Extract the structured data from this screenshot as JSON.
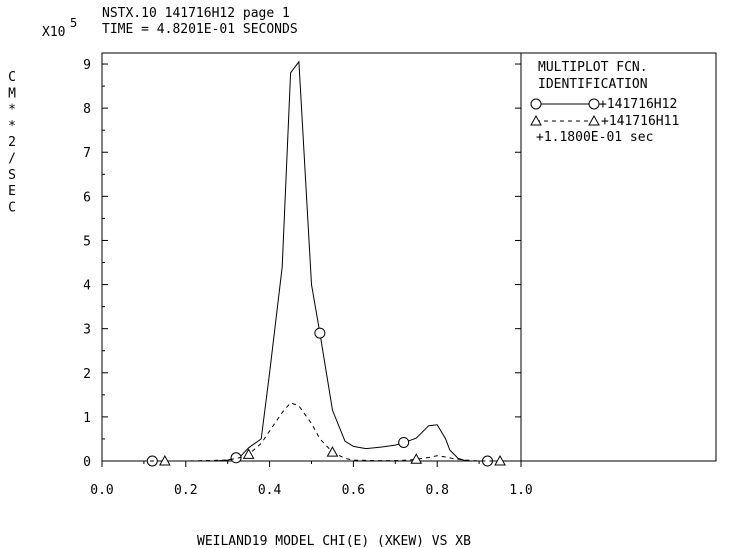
{
  "header": {
    "line1": "NSTX.10 141716H12 page 1",
    "line2": "TIME = 4.8201E-01 SECONDS",
    "scale_base": "X10",
    "scale_exp": "5"
  },
  "legend": {
    "title1": "MULTIPLOT FCN.",
    "title2": "IDENTIFICATION",
    "entry1": "+141716H12",
    "entry2": "+141716H11",
    "entry3": "+1.1800E-01 sec"
  },
  "chart_data": {
    "type": "line",
    "xlabel": "WEILAND19 MODEL CHI(E) (XKEW) VS XB",
    "ylabel": "CM**2/SEC",
    "ylabel_chars": [
      "C",
      "M",
      "*",
      "*",
      "2",
      "/",
      "S",
      "E",
      "C"
    ],
    "xlim": [
      0.0,
      1.0
    ],
    "ylim": [
      0,
      9.25
    ],
    "y_multiplier": "X10^5",
    "x_ticks": [
      "0.0",
      "0.2",
      "0.4",
      "0.6",
      "0.8",
      "1.0"
    ],
    "x_tick_values": [
      0.0,
      0.2,
      0.4,
      0.6,
      0.8,
      1.0
    ],
    "y_ticks": [
      "0",
      "1",
      "2",
      "3",
      "4",
      "5",
      "6",
      "7",
      "8",
      "9"
    ],
    "y_tick_values": [
      0,
      1,
      2,
      3,
      4,
      5,
      6,
      7,
      8,
      9
    ],
    "series": [
      {
        "name": "+141716H12",
        "style": "solid",
        "marker": "circle",
        "x": [
          0.0,
          0.1,
          0.2,
          0.27,
          0.3,
          0.33,
          0.35,
          0.38,
          0.4,
          0.43,
          0.45,
          0.47,
          0.5,
          0.52,
          0.55,
          0.58,
          0.6,
          0.63,
          0.67,
          0.7,
          0.73,
          0.75,
          0.78,
          0.8,
          0.82,
          0.83,
          0.85,
          0.87,
          0.9,
          1.0
        ],
        "y": [
          0,
          0,
          0,
          0,
          0.02,
          0.1,
          0.3,
          0.5,
          2.0,
          4.4,
          8.8,
          9.05,
          4.0,
          2.9,
          1.15,
          0.45,
          0.33,
          0.28,
          0.32,
          0.36,
          0.45,
          0.52,
          0.8,
          0.82,
          0.5,
          0.25,
          0.06,
          0,
          0,
          0
        ],
        "marker_x": [
          0.12,
          0.32,
          0.52,
          0.72,
          0.92
        ]
      },
      {
        "name": "+141716H11",
        "style": "dashed",
        "marker": "triangle",
        "x": [
          0.0,
          0.2,
          0.3,
          0.33,
          0.35,
          0.38,
          0.4,
          0.43,
          0.45,
          0.47,
          0.5,
          0.52,
          0.55,
          0.58,
          0.6,
          0.65,
          0.7,
          0.73,
          0.75,
          0.78,
          0.8,
          0.82,
          0.84,
          0.87,
          0.9,
          1.0
        ],
        "y": [
          0,
          0,
          0.02,
          0.08,
          0.15,
          0.4,
          0.68,
          1.1,
          1.32,
          1.25,
          0.85,
          0.5,
          0.2,
          0.06,
          0.02,
          0.01,
          0.01,
          0.02,
          0.04,
          0.08,
          0.12,
          0.09,
          0.05,
          0.02,
          0,
          0
        ],
        "marker_x": [
          0.15,
          0.35,
          0.55,
          0.75,
          0.95
        ]
      }
    ]
  }
}
